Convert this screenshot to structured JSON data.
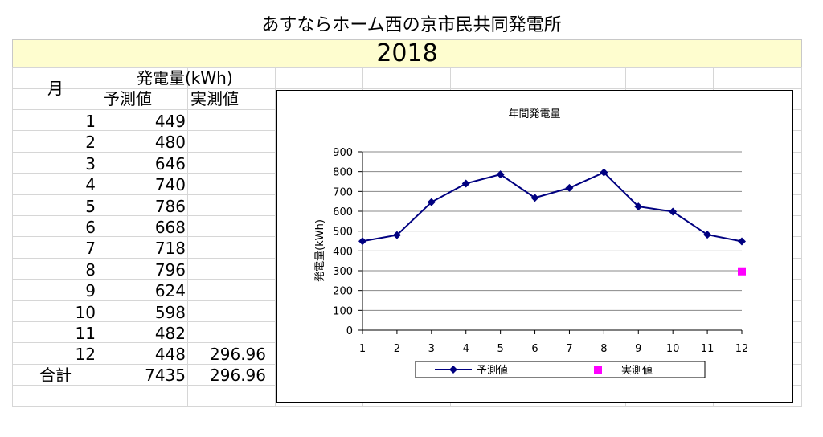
{
  "title": "あすならホーム西の京市民共同発電所",
  "year": "2018",
  "table": {
    "col_month": "月",
    "col_group": "発電量(kWh)",
    "col_pred": "予測値",
    "col_actual": "実測値",
    "rows": [
      {
        "month": "1",
        "pred": "449",
        "actual": ""
      },
      {
        "month": "2",
        "pred": "480",
        "actual": ""
      },
      {
        "month": "3",
        "pred": "646",
        "actual": ""
      },
      {
        "month": "4",
        "pred": "740",
        "actual": ""
      },
      {
        "month": "5",
        "pred": "786",
        "actual": ""
      },
      {
        "month": "6",
        "pred": "668",
        "actual": ""
      },
      {
        "month": "7",
        "pred": "718",
        "actual": ""
      },
      {
        "month": "8",
        "pred": "796",
        "actual": ""
      },
      {
        "month": "9",
        "pred": "624",
        "actual": ""
      },
      {
        "month": "10",
        "pred": "598",
        "actual": ""
      },
      {
        "month": "11",
        "pred": "482",
        "actual": ""
      },
      {
        "month": "12",
        "pred": "448",
        "actual": "296.96"
      }
    ],
    "total_label": "合計",
    "total_pred": "7435",
    "total_actual": "296.96"
  },
  "chart_data": {
    "type": "line",
    "title": "年間発電量",
    "ylabel": "発電量(kWh)",
    "xlabel": "",
    "categories": [
      "1",
      "2",
      "3",
      "4",
      "5",
      "6",
      "7",
      "8",
      "9",
      "10",
      "11",
      "12"
    ],
    "ylim": [
      0,
      900
    ],
    "yticks": [
      0,
      100,
      200,
      300,
      400,
      500,
      600,
      700,
      800,
      900
    ],
    "grid": true,
    "legend": "bottom",
    "series": [
      {
        "name": "予測値",
        "color": "#000080",
        "marker": "diamond",
        "values": [
          449,
          480,
          646,
          740,
          786,
          668,
          718,
          796,
          624,
          598,
          482,
          448
        ]
      },
      {
        "name": "実測値",
        "color": "#ff00ff",
        "marker": "square",
        "values": [
          null,
          null,
          null,
          null,
          null,
          null,
          null,
          null,
          null,
          null,
          null,
          296.96
        ]
      }
    ]
  }
}
